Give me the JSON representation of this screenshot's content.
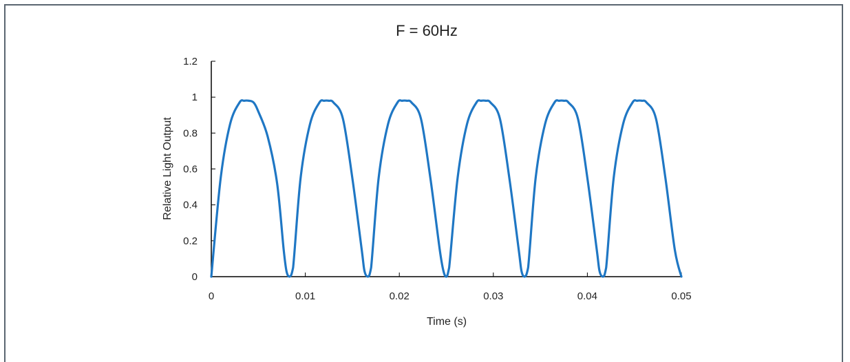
{
  "chart_data": {
    "type": "line",
    "title": "F = 60Hz",
    "xlabel": "Time (s)",
    "ylabel": "Relative Light Output",
    "xlim": [
      0,
      0.05
    ],
    "ylim": [
      0,
      1.2
    ],
    "x_ticks": [
      "0",
      "0.01",
      "0.02",
      "0.03",
      "0.04",
      "0.05"
    ],
    "y_ticks": [
      "0",
      "0.2",
      "0.4",
      "0.6",
      "0.8",
      "1",
      "1.2"
    ],
    "grid": false,
    "legend": "none",
    "series": [
      {
        "color": "#1f77c4",
        "x": [
          0,
          0.001,
          0.002,
          0.003,
          0.0035,
          0.004,
          0.0045,
          0.005,
          0.006,
          0.007,
          0.0077,
          0.008,
          0.00833,
          0.0087,
          0.0095,
          0.0105,
          0.0115,
          0.012,
          0.0125,
          0.013,
          0.014,
          0.015,
          0.016,
          0.0163,
          0.01667,
          0.017,
          0.0178,
          0.0188,
          0.0198,
          0.0203,
          0.0208,
          0.0213,
          0.0223,
          0.0233,
          0.0243,
          0.0247,
          0.025,
          0.0253,
          0.0262,
          0.0272,
          0.0282,
          0.0287,
          0.0292,
          0.0297,
          0.0307,
          0.0317,
          0.0327,
          0.033,
          0.03333,
          0.0337,
          0.0345,
          0.0355,
          0.0365,
          0.037,
          0.0375,
          0.038,
          0.039,
          0.04,
          0.041,
          0.0413,
          0.04167,
          0.042,
          0.0428,
          0.0438,
          0.0448,
          0.0453,
          0.0458,
          0.0463,
          0.0473,
          0.0483,
          0.0493,
          0.05
        ],
        "y": [
          0,
          0.55,
          0.85,
          0.97,
          0.98,
          0.98,
          0.97,
          0.92,
          0.78,
          0.52,
          0.15,
          0.03,
          0,
          0.05,
          0.55,
          0.85,
          0.97,
          0.98,
          0.98,
          0.97,
          0.88,
          0.55,
          0.15,
          0.03,
          0,
          0.05,
          0.55,
          0.85,
          0.97,
          0.98,
          0.98,
          0.97,
          0.88,
          0.55,
          0.15,
          0.03,
          0,
          0.05,
          0.55,
          0.85,
          0.97,
          0.98,
          0.98,
          0.97,
          0.88,
          0.55,
          0.15,
          0.03,
          0,
          0.05,
          0.55,
          0.85,
          0.97,
          0.98,
          0.98,
          0.97,
          0.88,
          0.55,
          0.15,
          0.03,
          0,
          0.05,
          0.55,
          0.85,
          0.97,
          0.98,
          0.98,
          0.97,
          0.88,
          0.55,
          0.15,
          0
        ]
      }
    ]
  }
}
